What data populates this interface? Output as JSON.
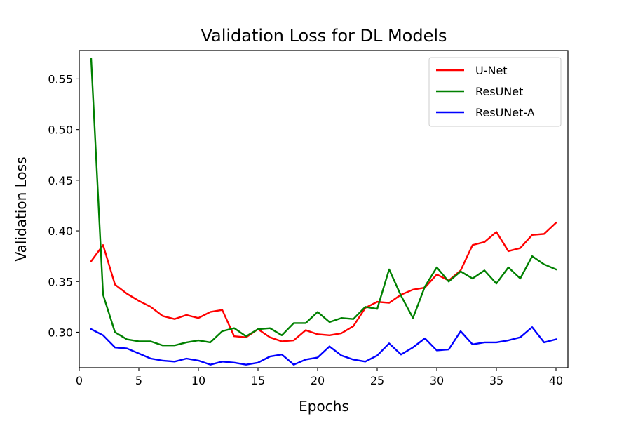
{
  "chart_data": {
    "type": "line",
    "title": "Validation Loss for DL Models",
    "xlabel": "Epochs",
    "ylabel": "Validation Loss",
    "xlim": [
      0,
      41
    ],
    "ylim": [
      0.265,
      0.578
    ],
    "xticks": [
      0,
      5,
      10,
      15,
      20,
      25,
      30,
      35,
      40
    ],
    "xtick_labels": [
      "0",
      "5",
      "10",
      "15",
      "20",
      "25",
      "30",
      "35",
      "40"
    ],
    "yticks": [
      0.3,
      0.35,
      0.4,
      0.45,
      0.5,
      0.55
    ],
    "ytick_labels": [
      "0.30",
      "0.35",
      "0.40",
      "0.45",
      "0.50",
      "0.55"
    ],
    "grid": false,
    "legend_position": "top-right",
    "x": [
      1,
      2,
      3,
      4,
      5,
      6,
      7,
      8,
      9,
      10,
      11,
      12,
      13,
      14,
      15,
      16,
      17,
      18,
      19,
      20,
      21,
      22,
      23,
      24,
      25,
      26,
      27,
      28,
      29,
      30,
      31,
      32,
      33,
      34,
      35,
      36,
      37,
      38,
      39,
      40
    ],
    "series": [
      {
        "name": "U-Net",
        "color": "#ff0000",
        "values": [
          0.37,
          0.386,
          0.347,
          0.338,
          0.331,
          0.325,
          0.316,
          0.313,
          0.317,
          0.314,
          0.32,
          0.322,
          0.296,
          0.295,
          0.303,
          0.295,
          0.291,
          0.292,
          0.302,
          0.298,
          0.297,
          0.299,
          0.306,
          0.324,
          0.33,
          0.329,
          0.337,
          0.342,
          0.344,
          0.357,
          0.351,
          0.361,
          0.386,
          0.389,
          0.399,
          0.38,
          0.383,
          0.396,
          0.397,
          0.408
        ]
      },
      {
        "name": "ResUNet",
        "color": "#008000",
        "values": [
          0.57,
          0.337,
          0.3,
          0.293,
          0.291,
          0.291,
          0.287,
          0.287,
          0.29,
          0.292,
          0.29,
          0.301,
          0.304,
          0.296,
          0.303,
          0.304,
          0.297,
          0.309,
          0.309,
          0.32,
          0.31,
          0.314,
          0.313,
          0.325,
          0.323,
          0.362,
          0.336,
          0.314,
          0.345,
          0.364,
          0.35,
          0.36,
          0.353,
          0.361,
          0.348,
          0.364,
          0.353,
          0.375,
          0.367,
          0.362
        ]
      },
      {
        "name": "ResUNet-A",
        "color": "#0000ff",
        "values": [
          0.303,
          0.297,
          0.285,
          0.284,
          0.279,
          0.274,
          0.272,
          0.271,
          0.274,
          0.272,
          0.268,
          0.271,
          0.27,
          0.268,
          0.27,
          0.276,
          0.278,
          0.268,
          0.273,
          0.275,
          0.286,
          0.277,
          0.273,
          0.271,
          0.277,
          0.289,
          0.278,
          0.285,
          0.294,
          0.282,
          0.283,
          0.301,
          0.288,
          0.29,
          0.29,
          0.292,
          0.295,
          0.305,
          0.29,
          0.293
        ]
      }
    ]
  }
}
